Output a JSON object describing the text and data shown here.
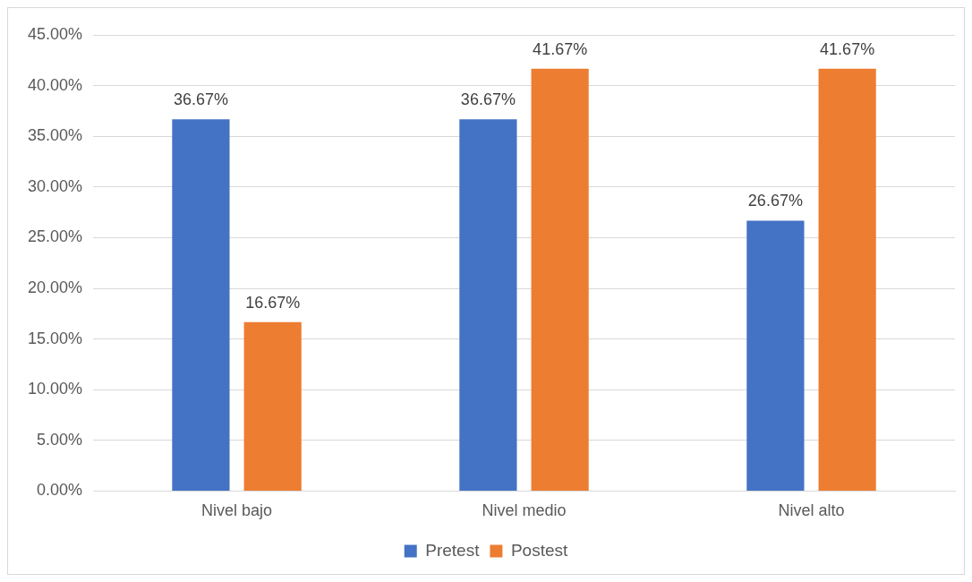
{
  "chart_data": {
    "type": "bar",
    "categories": [
      "Nivel bajo",
      "Nivel medio",
      "Nivel alto"
    ],
    "series": [
      {
        "name": "Pretest",
        "color": "#4472c4",
        "values": [
          36.67,
          36.67,
          26.67
        ],
        "value_labels": [
          "36.67%",
          "36.67%",
          "26.67%"
        ]
      },
      {
        "name": "Postest",
        "color": "#ed7d31",
        "values": [
          16.67,
          41.67,
          41.67
        ],
        "value_labels": [
          "16.67%",
          "41.67%",
          "41.67%"
        ]
      }
    ],
    "ylim": [
      0,
      45
    ],
    "yticks": [
      {
        "value": 0,
        "label": "0.00%"
      },
      {
        "value": 5,
        "label": "5.00%"
      },
      {
        "value": 10,
        "label": "10.00%"
      },
      {
        "value": 15,
        "label": "15.00%"
      },
      {
        "value": 20,
        "label": "20.00%"
      },
      {
        "value": 25,
        "label": "25.00%"
      },
      {
        "value": 30,
        "label": "30.00%"
      },
      {
        "value": 35,
        "label": "35.00%"
      },
      {
        "value": 40,
        "label": "40.00%"
      },
      {
        "value": 45,
        "label": "45.00%"
      }
    ],
    "grid": "y",
    "legend": "bottom"
  }
}
